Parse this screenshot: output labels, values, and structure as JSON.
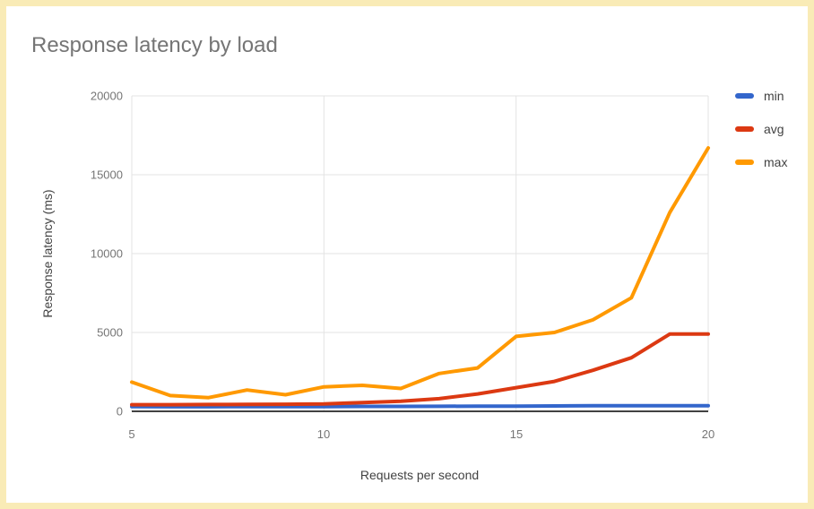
{
  "window": {
    "background": "#ffffff",
    "frame_color": "#f9ebb6"
  },
  "chart_data": {
    "type": "line",
    "title": "Response latency by load",
    "xlabel": "Requests per second",
    "ylabel": "Response latency (ms)",
    "x": [
      5,
      6,
      7,
      8,
      9,
      10,
      11,
      12,
      13,
      14,
      15,
      16,
      17,
      18,
      19,
      20
    ],
    "series": [
      {
        "name": "min",
        "color": "#3366cc",
        "values": [
          300,
          290,
          290,
          300,
          300,
          300,
          310,
          310,
          320,
          330,
          330,
          340,
          350,
          350,
          350,
          350
        ]
      },
      {
        "name": "avg",
        "color": "#dc3912",
        "values": [
          420,
          420,
          430,
          440,
          450,
          470,
          550,
          640,
          800,
          1100,
          1500,
          1900,
          2600,
          3400,
          4900,
          4900
        ]
      },
      {
        "name": "max",
        "color": "#ff9900",
        "values": [
          1850,
          1000,
          870,
          1350,
          1050,
          1550,
          1650,
          1450,
          2400,
          2750,
          4750,
          5000,
          5800,
          7200,
          12600,
          16700
        ]
      }
    ],
    "xlim": [
      5,
      20
    ],
    "ylim": [
      0,
      20000
    ],
    "xtick_values": [
      5,
      10,
      15,
      20
    ],
    "ytick_values": [
      0,
      5000,
      10000,
      15000,
      20000
    ],
    "xticks": [
      "5",
      "10",
      "15",
      "20"
    ],
    "yticks": [
      "20000",
      "15000",
      "10000",
      "5000",
      "0"
    ],
    "grid": true,
    "legend_position": "right",
    "grid_color": "#e3e3e3",
    "axis_line_color": "#424242",
    "title_color": "#757575",
    "tick_color": "#757575",
    "axis_label_color": "#424242",
    "line_width": 4
  }
}
